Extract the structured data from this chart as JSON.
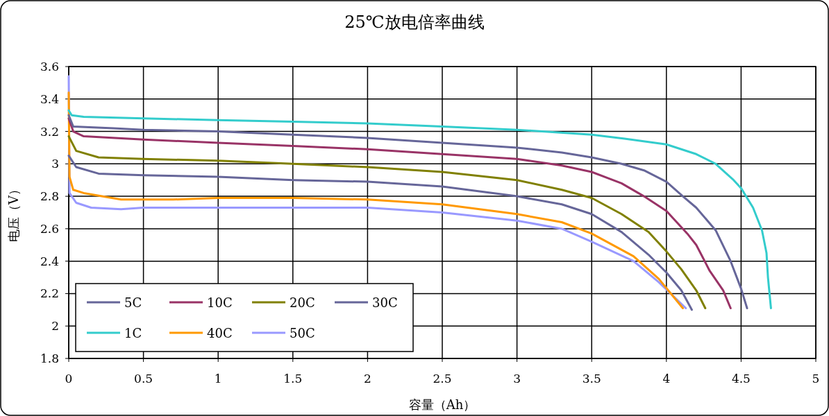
{
  "chart_data": {
    "type": "line",
    "title": "25℃放电倍率曲线",
    "xlabel": "容量（Ah）",
    "ylabel": "电压（V）",
    "xlim": [
      0,
      5
    ],
    "xticks": [
      0,
      0.5,
      1,
      1.5,
      2,
      2.5,
      3,
      3.5,
      4,
      4.5,
      5
    ],
    "ylim": [
      1.8,
      3.6
    ],
    "yticks": [
      1.8,
      2,
      2.2,
      2.4,
      2.6,
      2.8,
      3,
      3.2,
      3.4,
      3.6
    ],
    "grid": true,
    "legend": "bottom left",
    "series": [
      {
        "name": "5C",
        "color": "#666699",
        "x": [
          0,
          0.03,
          0.3,
          0.5,
          1,
          1.5,
          2,
          2.5,
          3,
          3.3,
          3.5,
          3.7,
          3.85,
          4,
          4.11,
          4.2,
          4.33,
          4.43,
          4.5,
          4.54
        ],
        "values": [
          3.3,
          3.23,
          3.22,
          3.21,
          3.2,
          3.18,
          3.16,
          3.13,
          3.1,
          3.07,
          3.04,
          3.0,
          2.96,
          2.89,
          2.8,
          2.73,
          2.59,
          2.4,
          2.23,
          2.11
        ]
      },
      {
        "name": "10C",
        "color": "#993366",
        "x": [
          0,
          0.03,
          0.1,
          0.5,
          1,
          1.5,
          2,
          2.5,
          3,
          3.3,
          3.5,
          3.7,
          3.85,
          4,
          4.14,
          4.2,
          4.29,
          4.38,
          4.43
        ],
        "values": [
          3.28,
          3.2,
          3.17,
          3.15,
          3.13,
          3.11,
          3.09,
          3.06,
          3.03,
          2.99,
          2.95,
          2.88,
          2.8,
          2.71,
          2.57,
          2.5,
          2.34,
          2.22,
          2.11
        ]
      },
      {
        "name": "20C",
        "color": "#808000",
        "x": [
          0,
          0.05,
          0.2,
          0.5,
          1,
          1.5,
          2,
          2.5,
          3,
          3.3,
          3.5,
          3.7,
          3.88,
          4,
          4.1,
          4.2,
          4.26
        ],
        "values": [
          3.17,
          3.08,
          3.04,
          3.03,
          3.02,
          3.0,
          2.98,
          2.95,
          2.9,
          2.84,
          2.79,
          2.69,
          2.58,
          2.46,
          2.35,
          2.22,
          2.11
        ]
      },
      {
        "name": "30C",
        "color": "#666699",
        "x": [
          0,
          0.05,
          0.2,
          0.5,
          1,
          1.5,
          2,
          2.5,
          3,
          3.3,
          3.5,
          3.7,
          3.88,
          4,
          4.1,
          4.17
        ],
        "values": [
          3.05,
          2.98,
          2.94,
          2.93,
          2.92,
          2.9,
          2.89,
          2.86,
          2.8,
          2.75,
          2.69,
          2.58,
          2.44,
          2.33,
          2.22,
          2.1
        ]
      },
      {
        "name": "1C",
        "color": "#33cccc",
        "x": [
          0,
          0.02,
          0.1,
          0.5,
          1,
          1.5,
          2,
          2.5,
          3,
          3.5,
          3.72,
          4,
          4.2,
          4.33,
          4.45,
          4.5,
          4.58,
          4.64,
          4.67,
          4.68,
          4.7
        ],
        "values": [
          3.33,
          3.3,
          3.29,
          3.28,
          3.27,
          3.26,
          3.25,
          3.23,
          3.21,
          3.18,
          3.155,
          3.12,
          3.06,
          3.0,
          2.9,
          2.85,
          2.73,
          2.59,
          2.45,
          2.3,
          2.11
        ]
      },
      {
        "name": "40C",
        "color": "#ff9900",
        "x": [
          0,
          0.005,
          0.03,
          0.1,
          0.35,
          0.7,
          1,
          1.5,
          2,
          2.5,
          3,
          3.3,
          3.5,
          3.78,
          3.95,
          4.11
        ],
        "values": [
          3.44,
          2.92,
          2.84,
          2.82,
          2.78,
          2.78,
          2.79,
          2.79,
          2.78,
          2.75,
          2.69,
          2.64,
          2.57,
          2.43,
          2.29,
          2.11
        ]
      },
      {
        "name": "50C",
        "color": "#9999ff",
        "x": [
          0,
          0.005,
          0.05,
          0.15,
          0.35,
          0.5,
          1,
          1.5,
          2,
          2.5,
          3,
          3.3,
          3.5,
          3.78,
          3.95,
          4.13
        ],
        "values": [
          3.54,
          2.82,
          2.76,
          2.73,
          2.72,
          2.73,
          2.73,
          2.73,
          2.73,
          2.7,
          2.65,
          2.6,
          2.52,
          2.4,
          2.27,
          2.11
        ]
      }
    ]
  }
}
